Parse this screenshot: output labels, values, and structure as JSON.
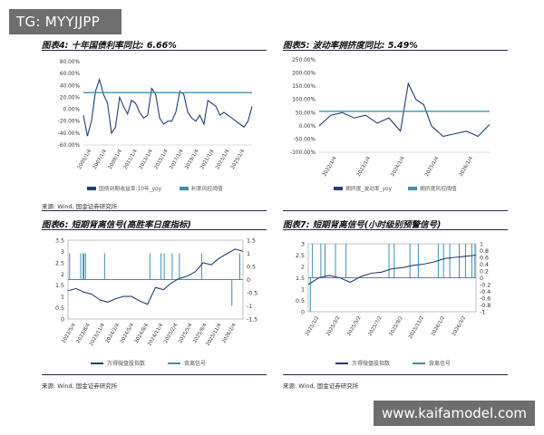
{
  "watermark_top": "TG: MYYJJPP",
  "watermark_bottom": "www.kaifamodel.com",
  "panels": [
    {
      "title": "图表4: 十年国债利率同比: 6.66%",
      "source": "来源: Wind, 国金证券研究所"
    },
    {
      "title": "图表5: 波动率拥挤度同比: 5.49%",
      "source": ""
    },
    {
      "title": "图表6: 短期背离信号(高胜率日度指标)",
      "source": "来源: Wind, 国金证券研究所"
    },
    {
      "title": "图表7: 短期背离信号(小时级别预警信号)",
      "source": "来源: Wind, 国金证券研究所"
    }
  ],
  "chart_data": [
    {
      "type": "line",
      "title": "图表4: 十年国债利率同比: 6.66%",
      "x_ticks": [
        "2005/1/4",
        "2007/1/4",
        "2009/1/4",
        "2011/1/4",
        "2013/1/4",
        "2015/1/4",
        "2017/1/4",
        "2019/1/4",
        "2021/1/4",
        "2023/1/4",
        "2025/1/4"
      ],
      "y_ticks": [
        "80.00%",
        "60.00%",
        "40.00%",
        "20.00%",
        "0.00%",
        "-20.00%",
        "-40.00%",
        "-60.00%"
      ],
      "ylim": [
        -60,
        80
      ],
      "series": [
        {
          "name": "国债到期收益率:10年_yoy",
          "color": "#1f3f77",
          "x": [
            2005.0,
            2005.5,
            2006.0,
            2006.5,
            2007.0,
            2007.5,
            2008.0,
            2008.5,
            2009.0,
            2009.5,
            2010.0,
            2010.5,
            2011.0,
            2011.5,
            2012.0,
            2012.5,
            2013.0,
            2013.5,
            2014.0,
            2014.5,
            2015.0,
            2015.5,
            2016.0,
            2016.5,
            2017.0,
            2017.5,
            2018.0,
            2018.5,
            2019.0,
            2019.5,
            2020.0,
            2020.5,
            2021.0,
            2021.5,
            2022.0,
            2022.5,
            2023.0,
            2023.5,
            2024.0,
            2024.5,
            2025.0,
            2025.5,
            2026.0
          ],
          "y": [
            -10,
            -45,
            -20,
            30,
            50,
            25,
            10,
            -40,
            -30,
            20,
            5,
            -8,
            15,
            10,
            -5,
            -15,
            -10,
            35,
            25,
            -15,
            -25,
            -20,
            -20,
            -5,
            30,
            25,
            -5,
            -15,
            -20,
            -10,
            -25,
            15,
            10,
            5,
            -10,
            -5,
            -10,
            -15,
            -20,
            -25,
            -30,
            -20,
            5
          ]
        },
        {
          "name": "利率风控阈值",
          "color": "#3a8fb7",
          "x": [
            2005.0,
            2026.0
          ],
          "y": [
            28,
            28
          ]
        }
      ]
    },
    {
      "type": "line",
      "title": "图表5: 波动率拥挤度同比: 5.49%",
      "x_ticks": [
        "2022/1/4",
        "2023/1/4",
        "2024/1/4",
        "2025/1/4",
        "2026/1/4"
      ],
      "y_ticks": [
        "250.00%",
        "200.00%",
        "150.00%",
        "100.00%",
        "50.00%",
        "0.00%",
        "-50.00%",
        "-100.00%"
      ],
      "ylim": [
        -100,
        250
      ],
      "series": [
        {
          "name": "拥挤度_波动率_yoy",
          "color": "#1f3f77",
          "x": [
            2022.0,
            2022.3,
            2022.6,
            2022.9,
            2023.2,
            2023.5,
            2023.8,
            2024.1,
            2024.3,
            2024.5,
            2024.7,
            2024.9,
            2025.2,
            2025.5,
            2025.8,
            2026.1,
            2026.4
          ],
          "y": [
            0,
            40,
            50,
            30,
            40,
            10,
            30,
            -20,
            160,
            100,
            80,
            0,
            -40,
            -30,
            -20,
            -40,
            5
          ]
        },
        {
          "name": "拥挤度风控阈值",
          "color": "#3a8fb7",
          "x": [
            2022.0,
            2026.4
          ],
          "y": [
            55,
            55
          ]
        }
      ]
    },
    {
      "type": "line",
      "title": "图表6: 短期背离信号(高胜率日度指标)",
      "x_ticks": [
        "2023/5/4",
        "2023/8/4",
        "2023/11/4",
        "2024/2/4",
        "2024/5/4",
        "2024/8/4",
        "2024/11/4",
        "2025/2/4",
        "2025/5/4",
        "2025/8/4",
        "2025/11/4",
        "2026/2/4"
      ],
      "y_left_ticks": [
        "3.5",
        "3",
        "2.5",
        "2",
        "1.5",
        "1",
        "0.5",
        "0"
      ],
      "y_right_ticks": [
        "1.5",
        "1",
        "0.5",
        "0",
        "-0.5",
        "-1",
        "-1.5"
      ],
      "ylim_left": [
        0,
        3.5
      ],
      "ylim_right": [
        -1.5,
        1.5
      ],
      "series": [
        {
          "name": "万得微盘股指数",
          "axis": "left",
          "color": "#1f3f77",
          "x": [
            0,
            1,
            2,
            3,
            4,
            5,
            6,
            7,
            8,
            9,
            10,
            11,
            12,
            13,
            14,
            15,
            16,
            17,
            18,
            19,
            20,
            21,
            22
          ],
          "y": [
            1.25,
            1.35,
            1.2,
            1.1,
            0.85,
            0.75,
            0.9,
            1.0,
            1.0,
            0.8,
            0.65,
            1.4,
            1.3,
            1.6,
            1.8,
            1.9,
            2.1,
            2.5,
            2.4,
            2.7,
            2.9,
            3.1,
            3.0
          ]
        },
        {
          "name": "背离信号",
          "axis": "right",
          "color": "#3a8fb7",
          "spikes_up": [
            0.2,
            1.6,
            1.9,
            2.0,
            2.2,
            4.6,
            10.3,
            11.7,
            12.1,
            13.1,
            14.0,
            16.8,
            21.6
          ],
          "spikes_down": [
            20.6
          ]
        }
      ]
    },
    {
      "type": "line",
      "title": "图表7: 短期背离信号(小时级别预警信号)",
      "x_ticks": [
        "2025/1/2",
        "2025/3/2",
        "2025/5/2",
        "2025/7/2",
        "2025/9/2",
        "2025/11/2",
        "2026/1/2",
        "2026/3/2"
      ],
      "y_left_ticks": [
        "3",
        "2.5",
        "2",
        "1.5",
        "1",
        "0.5",
        "0"
      ],
      "y_right_ticks": [
        "1",
        "0.8",
        "0.6",
        "0.4",
        "0.2",
        "0",
        "-0.2",
        "-0.4",
        "-0.6",
        "-0.8",
        "-1"
      ],
      "ylim_left": [
        0,
        3
      ],
      "ylim_right": [
        -1,
        1
      ],
      "series": [
        {
          "name": "万得微盘股指数",
          "axis": "left",
          "color": "#1f3f77",
          "x": [
            0,
            1,
            2,
            3,
            4,
            5,
            6,
            7,
            8,
            9,
            10,
            11,
            12,
            13,
            14,
            15,
            16
          ],
          "y": [
            1.2,
            1.5,
            1.6,
            1.5,
            1.3,
            1.55,
            1.7,
            1.75,
            1.9,
            1.95,
            2.05,
            2.1,
            2.2,
            2.35,
            2.4,
            2.45,
            2.5
          ]
        },
        {
          "name": "背离信号",
          "axis": "right",
          "color": "#3a8fb7",
          "spikes_up": [
            0.4,
            1.2,
            1.6,
            2.6,
            3.6,
            7.7,
            8.2,
            9.7,
            10.5,
            12.4,
            12.9,
            13.5,
            14.4,
            15.0,
            15.6,
            15.9
          ],
          "spikes_down": [
            0.2
          ]
        }
      ]
    }
  ]
}
